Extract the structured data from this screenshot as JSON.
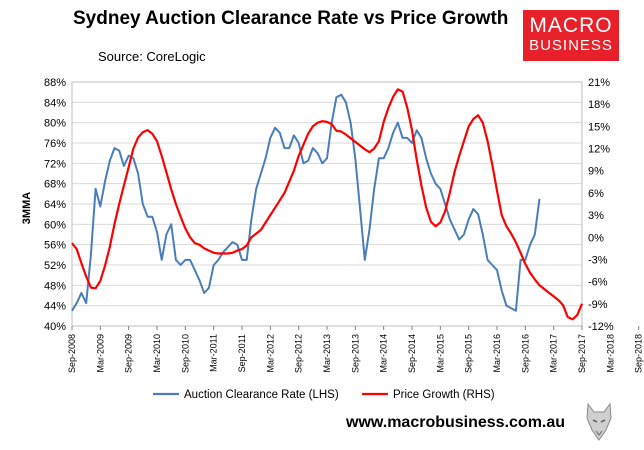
{
  "header": {
    "title": "Sydney Auction Clearance Rate vs Price Growth",
    "subtitle": "Source: CoreLogic",
    "logo_line1": "MACRO",
    "logo_line2": "BUSINESS",
    "footer_url": "www.macrobusiness.com.au"
  },
  "chart_data": {
    "type": "line",
    "ylabel_left": "3MMA",
    "x_start": "2008-09",
    "x_tick_labels": [
      "Sep-2008",
      "Mar-2009",
      "Sep-2009",
      "Mar-2010",
      "Sep-2010",
      "Mar-2011",
      "Sep-2011",
      "Mar-2012",
      "Sep-2012",
      "Mar-2013",
      "Sep-2013",
      "Mar-2014",
      "Sep-2014",
      "Mar-2015",
      "Sep-2015",
      "Mar-2016",
      "Sep-2016",
      "Mar-2017",
      "Sep-2017",
      "Mar-2018",
      "Sep-2018",
      "Mar-2019"
    ],
    "y_left": {
      "min": 40,
      "max": 88,
      "step": 4,
      "tick_labels": [
        "40%",
        "44%",
        "48%",
        "52%",
        "56%",
        "60%",
        "64%",
        "68%",
        "72%",
        "76%",
        "80%",
        "84%",
        "88%"
      ]
    },
    "y_right": {
      "min": -12,
      "max": 21,
      "step": 3,
      "tick_labels": [
        "-12%",
        "-9%",
        "-6%",
        "-3%",
        "0%",
        "3%",
        "6%",
        "9%",
        "12%",
        "15%",
        "18%",
        "21%"
      ]
    },
    "grid": true,
    "legend_position": "bottom",
    "series": [
      {
        "name": "Auction Clearance Rate (LHS)",
        "axis": "left",
        "color": "#4a7ebb",
        "values": [
          43,
          44.5,
          46.5,
          44.5,
          54,
          67,
          63.5,
          68.5,
          72.5,
          75,
          74.5,
          71.5,
          73.5,
          73,
          70,
          64,
          61.5,
          61.5,
          58.5,
          53,
          58,
          60,
          53,
          52,
          53,
          53,
          51,
          49,
          46.5,
          47.5,
          52,
          53,
          54.5,
          55.5,
          56.5,
          56,
          53,
          53,
          61,
          67,
          70,
          73,
          77,
          79,
          78,
          75,
          75,
          77.5,
          76,
          72,
          72.5,
          75,
          74,
          72,
          73,
          80,
          85,
          85.5,
          84,
          80,
          73,
          63,
          53,
          59,
          67,
          73,
          73,
          75,
          78,
          80,
          77,
          77,
          76,
          78.5,
          77,
          73,
          70,
          68,
          67,
          64,
          61,
          59,
          57,
          58,
          61,
          63,
          62,
          58,
          53,
          52,
          51,
          47,
          44,
          43.5,
          43,
          53,
          53,
          56,
          58,
          65
        ]
      },
      {
        "name": "Price Growth (RHS)",
        "axis": "right",
        "color": "#ff0000",
        "values": [
          -0.8,
          -1.6,
          -3.5,
          -5.3,
          -6.8,
          -6.9,
          -5.9,
          -3.8,
          -1.3,
          1.8,
          4.5,
          7,
          9.5,
          12,
          13.5,
          14.2,
          14.5,
          14,
          13,
          11,
          8.8,
          6.5,
          4.5,
          2.8,
          1.2,
          0,
          -0.8,
          -1,
          -1.5,
          -1.8,
          -2.1,
          -2.2,
          -2.2,
          -2.2,
          -2.1,
          -1.8,
          -1.6,
          -1.1,
          0,
          0.5,
          1,
          2,
          3,
          4,
          5,
          6,
          7.5,
          9,
          11,
          12.5,
          14,
          15,
          15.5,
          15.7,
          15.6,
          15.3,
          14.4,
          14.3,
          13.9,
          13.4,
          12.9,
          12.4,
          11.9,
          11.5,
          12,
          13,
          15.6,
          17.5,
          19,
          20,
          19.7,
          17.5,
          14.5,
          10.5,
          7,
          4,
          2.1,
          1.5,
          2,
          3.5,
          6,
          8.8,
          11,
          13,
          15,
          16,
          16.5,
          15.5,
          13,
          9.8,
          6.3,
          3,
          1.5,
          0.5,
          -0.7,
          -2.1,
          -3.6,
          -4.8,
          -5.7,
          -6.5,
          -7,
          -7.5,
          -8,
          -8.5,
          -9.2,
          -10.8,
          -11.1,
          -10.5,
          -9
        ]
      }
    ]
  }
}
